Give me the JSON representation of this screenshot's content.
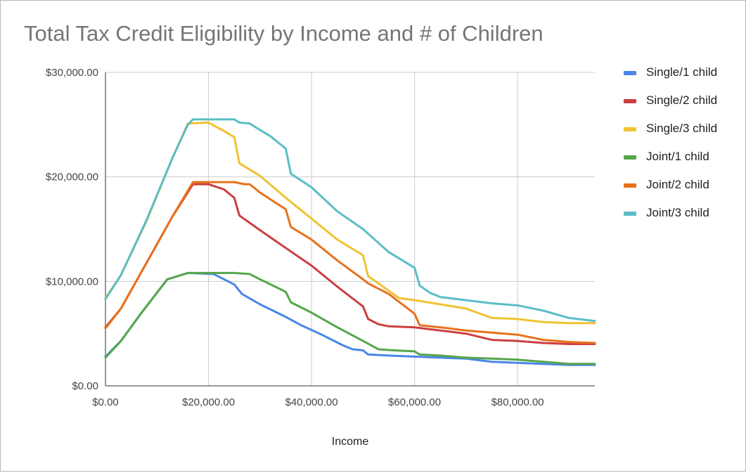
{
  "chart_data": {
    "type": "line",
    "title": "Total Tax Credit Eligibility by Income and # of Children",
    "xlabel": "Income",
    "ylabel": "",
    "xlim": [
      0,
      95000
    ],
    "ylim": [
      0,
      30000
    ],
    "x_ticks": [
      "$0.00",
      "$20,000.00",
      "$40,000.00",
      "$60,000.00",
      "$80,000.00"
    ],
    "x_tick_values": [
      0,
      20000,
      40000,
      60000,
      80000
    ],
    "y_ticks": [
      "$0.00",
      "$10,000.00",
      "$20,000.00",
      "$30,000.00"
    ],
    "y_tick_values": [
      0,
      10000,
      20000,
      30000
    ],
    "grid": true,
    "legend_position": "right",
    "series": [
      {
        "name": "Single/1 child",
        "color": "#4a86e8",
        "x": [
          0,
          3000,
          7000,
          12000,
          16000,
          21000,
          25000,
          26500,
          30000,
          35000,
          38000,
          42000,
          46000,
          48000,
          50000,
          51000,
          55000,
          60000,
          65000,
          70000,
          75000,
          80000,
          85000,
          90000,
          95000
        ],
        "y": [
          2800,
          4300,
          7000,
          10200,
          10800,
          10700,
          9700,
          8800,
          7800,
          6600,
          5800,
          4900,
          3900,
          3500,
          3400,
          3000,
          2900,
          2800,
          2700,
          2600,
          2300,
          2200,
          2100,
          2000,
          2000
        ]
      },
      {
        "name": "Single/2 child",
        "color": "#cc3f3f",
        "x": [
          0,
          3000,
          8000,
          13000,
          17000,
          20000,
          23000,
          25000,
          26000,
          30000,
          35000,
          40000,
          45000,
          50000,
          51000,
          53000,
          55000,
          60000,
          65000,
          70000,
          75000,
          80000,
          85000,
          90000,
          95000
        ],
        "y": [
          5600,
          7400,
          11800,
          16200,
          19300,
          19300,
          18800,
          18000,
          16300,
          14900,
          13200,
          11500,
          9500,
          7600,
          6400,
          5900,
          5700,
          5600,
          5300,
          5000,
          4400,
          4300,
          4100,
          4000,
          4000
        ]
      },
      {
        "name": "Single/3 child",
        "color": "#f1c232",
        "x": [
          0,
          3000,
          8000,
          13000,
          16000,
          20000,
          23000,
          25000,
          26000,
          30000,
          35000,
          40000,
          45000,
          50000,
          51000,
          55000,
          57000,
          60000,
          65000,
          70000,
          75000,
          80000,
          85000,
          90000,
          95000
        ],
        "y": [
          8400,
          10600,
          15800,
          21800,
          25100,
          25200,
          24400,
          23800,
          21300,
          20100,
          18000,
          16000,
          14000,
          12500,
          10500,
          9100,
          8400,
          8200,
          7800,
          7400,
          6500,
          6400,
          6100,
          6000,
          6000
        ]
      },
      {
        "name": "Joint/1 child",
        "color": "#56a64b",
        "x": [
          0,
          3000,
          7000,
          12000,
          16000,
          20000,
          25000,
          28000,
          30000,
          35000,
          36000,
          40000,
          45000,
          50000,
          53000,
          56000,
          60000,
          61000,
          65000,
          70000,
          75000,
          80000,
          85000,
          90000,
          95000
        ],
        "y": [
          2700,
          4300,
          7000,
          10200,
          10800,
          10800,
          10800,
          10700,
          10200,
          9000,
          8000,
          7000,
          5600,
          4300,
          3500,
          3400,
          3300,
          3000,
          2900,
          2700,
          2600,
          2500,
          2300,
          2100,
          2100
        ]
      },
      {
        "name": "Joint/2 child",
        "color": "#e8711b",
        "x": [
          0,
          3000,
          8000,
          13000,
          17000,
          20000,
          25000,
          27000,
          28000,
          30000,
          35000,
          36000,
          40000,
          45000,
          50000,
          51000,
          55000,
          60000,
          61000,
          65000,
          70000,
          75000,
          80000,
          85000,
          90000,
          95000
        ],
        "y": [
          5500,
          7400,
          11800,
          16200,
          19500,
          19500,
          19500,
          19300,
          19300,
          18500,
          16900,
          15200,
          14000,
          12000,
          10200,
          9800,
          8800,
          6900,
          5800,
          5600,
          5300,
          5100,
          4900,
          4400,
          4200,
          4100
        ]
      },
      {
        "name": "Joint/3 child",
        "color": "#5bbdc6",
        "x": [
          0,
          3000,
          8000,
          13000,
          16000,
          17000,
          20000,
          25000,
          26000,
          28000,
          30000,
          32000,
          35000,
          36000,
          40000,
          45000,
          50000,
          55000,
          60000,
          61000,
          63000,
          65000,
          70000,
          75000,
          80000,
          85000,
          90000,
          95000
        ],
        "y": [
          8300,
          10600,
          15900,
          21800,
          25000,
          25500,
          25500,
          25500,
          25200,
          25100,
          24500,
          23900,
          22700,
          20300,
          19000,
          16700,
          15000,
          12800,
          11300,
          9600,
          8900,
          8500,
          8200,
          7900,
          7700,
          7200,
          6500,
          6200
        ]
      }
    ]
  }
}
